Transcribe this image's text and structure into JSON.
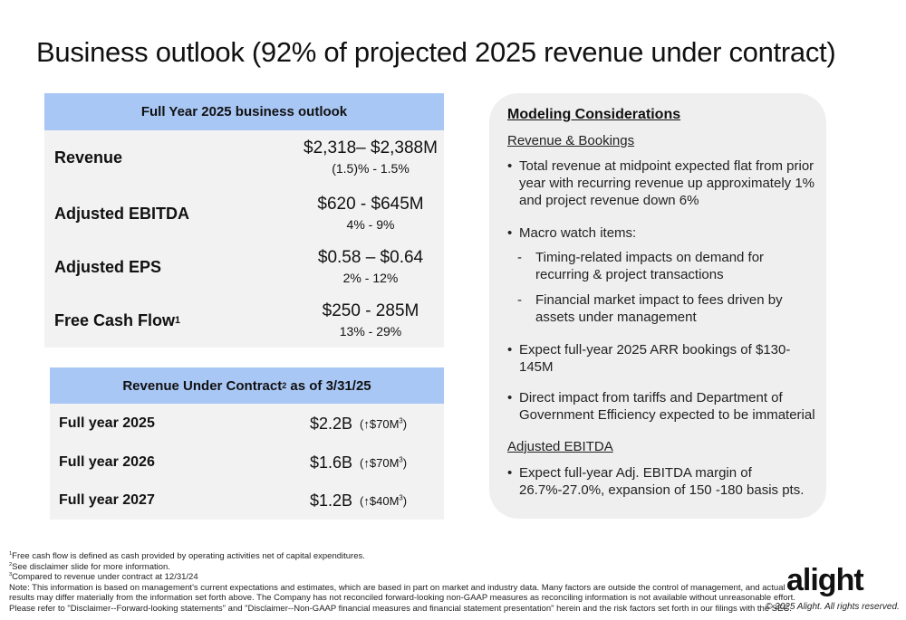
{
  "title": "Business outlook (92% of projected 2025 revenue under contract)",
  "outlook": {
    "header": "Full Year 2025 business outlook",
    "rows": [
      {
        "label": "Revenue",
        "value": "$2,318– $2,388M",
        "range": "(1.5)% - 1.5%"
      },
      {
        "label": "Adjusted EBITDA",
        "value": "$620 - $645M",
        "range": "4% - 9%"
      },
      {
        "label": "Adjusted EPS",
        "value": "$0.58 – $0.64",
        "range": "2% - 12%"
      },
      {
        "label": "Free Cash Flow",
        "label_sup": "1",
        "value": "$250 - 285M",
        "range": "13% - 29%"
      }
    ]
  },
  "contract": {
    "header_pre": "Revenue Under Contract",
    "header_sup": "2",
    "header_post": " as of 3/31/25",
    "rows": [
      {
        "label": "Full year 2025",
        "value": "$2.2B",
        "change": "(↑$70M",
        "change_sup": "3",
        "change_end": ")"
      },
      {
        "label": "Full year 2026",
        "value": "$1.6B",
        "change": "(↑$70M",
        "change_sup": "3",
        "change_end": ")"
      },
      {
        "label": "Full year 2027",
        "value": "$1.2B",
        "change": "(↑$40M",
        "change_sup": "3",
        "change_end": ")"
      }
    ]
  },
  "modeling": {
    "title": "Modeling Considerations",
    "section1": "Revenue & Bookings",
    "b1": "Total revenue at midpoint expected flat from prior year with recurring revenue up approximately 1% and project revenue down 6%",
    "b2": "Macro watch items:",
    "s1": "Timing-related impacts on demand for recurring & project transactions",
    "s2": "Financial market impact to fees driven by assets under management",
    "b3": "Expect full-year 2025 ARR bookings of $130-145M",
    "b4": "Direct impact from tariffs and Department of Government Efficiency expected to be immaterial",
    "section2": "Adjusted EBITDA",
    "b5": "Expect full-year Adj. EBITDA margin of 26.7%-27.0%, expansion of 150 -180 basis pts."
  },
  "footnotes": {
    "f1_num": "1",
    "f1": "Free cash flow is defined as cash provided by operating activities net of capital expenditures.",
    "f2_num": "2",
    "f2": "See disclaimer slide for more information.",
    "f3_num": "3",
    "f3": "Compared to revenue under contract at 12/31/24",
    "note1": "Note: This information is based on management's current expectations and estimates, which are based in part on market and industry data. Many factors are outside the control of management, and actual",
    "note2": "results may differ materially from the information set forth above. The Company has not reconciled forward-looking non-GAAP measures as reconciling information is not available without unreasonable effort.",
    "note3": "Please refer to \"Disclaimer--Forward-looking statements\" and \"Disclaimer--Non-GAAP financial measures and financial statement presentation\" herein and the risk factors set forth in our filings with the SEC."
  },
  "brand": {
    "logo": "alight",
    "copyright": "© 2025 Alight. All rights reserved."
  },
  "colors": {
    "header_blue": "#a9c7f5",
    "table_gray": "#f2f2f2",
    "panel_gray": "#efefef"
  }
}
